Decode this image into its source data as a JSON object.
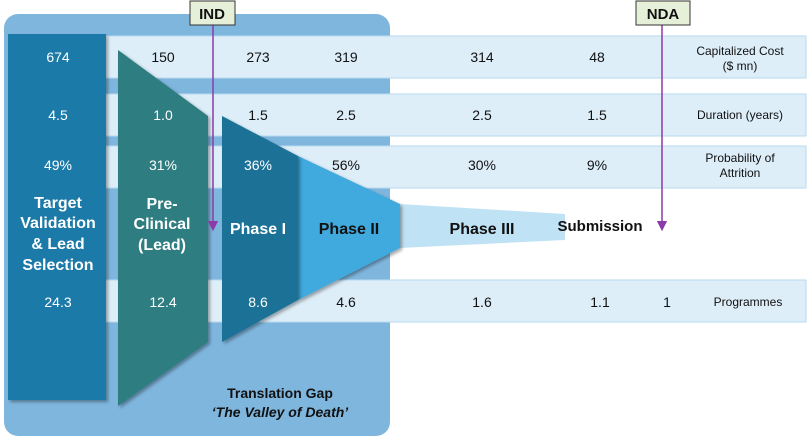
{
  "colors": {
    "gap_background": "#7fb6de",
    "row_band": "#ddeef9",
    "row_band_border": "#b9d9ef",
    "target": "#1f7aa8",
    "preclinical": "#2e7d80",
    "phase1": "#1f7197",
    "phase2": "#3fa9de",
    "phase3": "#bfe3f5",
    "milestone_box": "#e6f0d8",
    "milestone_border": "#333333",
    "marker_line": "#8b3aa8"
  },
  "milestones": {
    "ind": "IND",
    "nda": "NDA"
  },
  "stages": {
    "target": [
      "Target",
      "Validation",
      "& Lead",
      "Selection"
    ],
    "preclinical": [
      "Pre-",
      "Clinical",
      "(Lead)"
    ],
    "phase1": "Phase I",
    "phase2": "Phase II",
    "phase3": "Phase III",
    "submission": "Submission"
  },
  "row_labels": {
    "cost": [
      "Capitalized Cost",
      "($ mn)"
    ],
    "duration": "Duration (years)",
    "attrition": [
      "Probability of",
      "Attrition"
    ],
    "programmes": "Programmes"
  },
  "rows": {
    "cost": [
      "674",
      "150",
      "273",
      "319",
      "314",
      "48"
    ],
    "duration": [
      "4.5",
      "1.0",
      "1.5",
      "2.5",
      "2.5",
      "1.5"
    ],
    "attrition": [
      "49%",
      "31%",
      "36%",
      "56%",
      "30%",
      "9%"
    ],
    "programmes": [
      "24.3",
      "12.4",
      "8.6",
      "4.6",
      "1.6",
      "1.1",
      "1"
    ]
  },
  "caption": {
    "line1": "Translation Gap",
    "line2": "‘The Valley of Death’"
  }
}
